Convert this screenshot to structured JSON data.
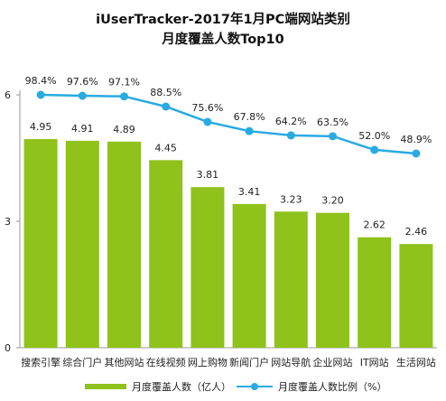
{
  "title": {
    "line1": "iUserTracker-2017年1月PC端网站类别",
    "line2": "月度覆盖人数Top10"
  },
  "colors": {
    "bar": "#8fc21b",
    "line": "#29abe2",
    "axis": "#999999",
    "text": "#222222"
  },
  "chart_data": {
    "type": "bar",
    "title": "iUserTracker-2017年1月PC端网站类别 月度覆盖人数Top10",
    "categories": [
      "搜索引擎",
      "综合门户",
      "其他网站",
      "在线视频",
      "网上购物",
      "新闻门户",
      "网站导航",
      "企业网站",
      "IT网站",
      "生活网站"
    ],
    "ylim": [
      0,
      6
    ],
    "yticks": [
      0,
      3,
      6
    ],
    "grid": false,
    "legend_position": "bottom",
    "series": [
      {
        "name": "月度覆盖人数（亿人）",
        "type": "bar",
        "values": [
          4.95,
          4.91,
          4.89,
          4.45,
          3.81,
          3.41,
          3.23,
          3.2,
          2.62,
          2.46
        ],
        "labels": [
          "4.95",
          "4.91",
          "4.89",
          "4.45",
          "3.81",
          "3.41",
          "3.23",
          "3.20",
          "2.62",
          "2.46"
        ]
      },
      {
        "name": "月度覆盖人数比例（%）",
        "type": "line",
        "values": [
          98.4,
          97.6,
          97.1,
          88.5,
          75.6,
          67.8,
          64.2,
          63.5,
          52.0,
          48.9
        ],
        "labels": [
          "98.4%",
          "97.6%",
          "97.1%",
          "88.5%",
          "75.6%",
          "67.8%",
          "64.2%",
          "63.5%",
          "52.0%",
          "48.9%"
        ]
      }
    ]
  },
  "legend": {
    "bar_label": "月度覆盖人数（亿人）",
    "line_label": "月度覆盖人数比例（%）"
  }
}
